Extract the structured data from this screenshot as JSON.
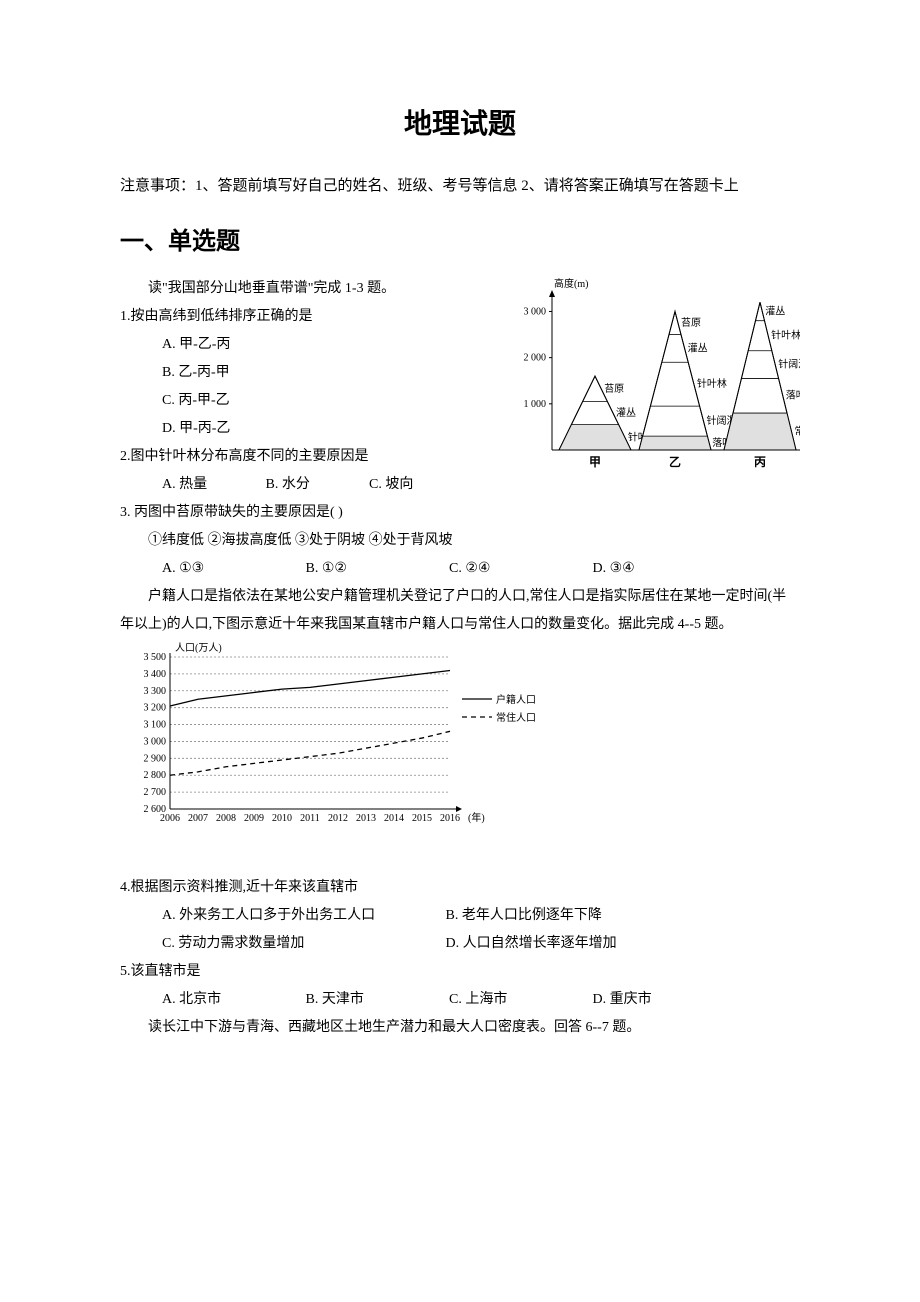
{
  "doc": {
    "title": "地理试题",
    "notice": "注意事项：1、答题前填写好自己的姓名、班级、考号等信息 2、请将答案正确填写在答题卡上",
    "section1_heading": "一、单选题"
  },
  "intro_q1_3": "读\"我国部分山地垂直带谱\"完成 1-3 题。",
  "q1": {
    "stem": "1.按由高纬到低纬排序正确的是",
    "optA": "A. 甲-乙-丙",
    "optB": "B. 乙-丙-甲",
    "optC": "C. 丙-甲-乙",
    "optD": "D. 甲-丙-乙"
  },
  "q2": {
    "stem": "2.图中针叶林分布高度不同的主要原因是",
    "optA": "A. 热量",
    "optB": "B. 水分",
    "optC": "C. 坡向"
  },
  "q3": {
    "stem": "3.  丙图中苔原带缺失的主要原因是(      )",
    "circled": "①纬度低     ②海拔高度低      ③处于阴坡     ④处于背风坡",
    "optA": "A. ①③",
    "optB": "B. ①②",
    "optC": "C. ②④",
    "optD": "D. ③④"
  },
  "intro_q4_5": "户籍人口是指依法在某地公安户籍管理机关登记了户口的人口,常住人口是指实际居住在某地一定时间(半年以上)的人口,下图示意近十年来我国某直辖市户籍人口与常住人口的数量变化。据此完成 4--5 题。",
  "q4": {
    "stem": "4.根据图示资料推测,近十年来该直辖市",
    "optA": "A. 外来务工人口多于外出务工人口",
    "optB": "B. 老年人口比例逐年下降",
    "optC": "C. 劳动力需求数量增加",
    "optD": "D. 人口自然增长率逐年增加"
  },
  "q5": {
    "stem": "5.该直辖市是",
    "optA": "A. 北京市",
    "optB": "B. 天津市",
    "optC": "C. 上海市",
    "optD": "D. 重庆市"
  },
  "intro_q6_7": "读长江中下游与青海、西藏地区土地生产潜力和最大人口密度表。回答 6--7 题。",
  "mountain_diagram": {
    "y_axis_label": "高度(m)",
    "y_ticks": [
      1000,
      2000,
      3000
    ],
    "peaks": {
      "jia": {
        "name": "甲",
        "bands": [
          "针叶林",
          "灌丛",
          "苔原"
        ],
        "dividers_y": [
          550,
          1050
        ],
        "top_y": 1600,
        "colors": {
          "fill": "#ffffff",
          "band_bottom": "#d0d0d0"
        }
      },
      "yi": {
        "name": "乙",
        "bands": [
          "落叶阔叶林",
          "针阔混交林",
          "针叶林",
          "灌丛",
          "苔原"
        ],
        "dividers_y": [
          300,
          950,
          1900,
          2500
        ],
        "top_y": 3000,
        "colors": {
          "fill": "#ffffff",
          "band_bottom": "#d0d0d0"
        }
      },
      "bing": {
        "name": "丙",
        "bands": [
          "常绿阔叶林",
          "落叶阔叶林",
          "针阔混交林",
          "针叶林",
          "灌丛"
        ],
        "dividers_y": [
          800,
          1550,
          2150,
          2800
        ],
        "top_y": 3200
      }
    },
    "font_size": 10
  },
  "population_chart": {
    "type": "line",
    "y_axis_label": "人口(万人)",
    "x_axis_label_suffix": "(年)",
    "x_ticks": [
      2006,
      2007,
      2008,
      2009,
      2010,
      2011,
      2012,
      2013,
      2014,
      2015,
      2016
    ],
    "y_ticks": [
      2600,
      2700,
      2800,
      2900,
      3000,
      3100,
      3200,
      3300,
      3400,
      3500
    ],
    "ylim": [
      2600,
      3500
    ],
    "series": [
      {
        "name": "户籍人口",
        "legend_label": "户籍人口",
        "dash": "solid",
        "color": "#000000",
        "values": [
          3210,
          3250,
          3270,
          3290,
          3310,
          3320,
          3340,
          3360,
          3380,
          3400,
          3420
        ]
      },
      {
        "name": "常住人口",
        "legend_label": "常住人口",
        "dash": "dashed",
        "color": "#000000",
        "values": [
          2800,
          2820,
          2850,
          2870,
          2890,
          2910,
          2930,
          2960,
          2990,
          3020,
          3060
        ]
      }
    ],
    "grid_dash": "2,2",
    "grid_color": "#888888",
    "font_size": 10
  }
}
